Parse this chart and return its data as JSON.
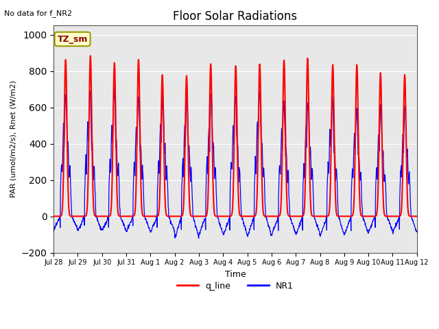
{
  "title": "Floor Solar Radiations",
  "xlabel": "Time",
  "ylabel": "PAR (umol/m2/s), Rnet (W/m2)",
  "ylim": [
    -200,
    1050
  ],
  "yticks": [
    -200,
    0,
    200,
    400,
    600,
    800,
    1000
  ],
  "no_data_text": "No data for f_NR2",
  "legend_label1": "q_line",
  "legend_label2": "NR1",
  "tz_label": "TZ_sm",
  "bg_color": "#e8e8e8",
  "num_days": 15,
  "xtick_labels": [
    "Jul 28",
    "Jul 29",
    "Jul 30",
    "Jul 31",
    "Aug 1",
    "Aug 2",
    "Aug 3",
    "Aug 4",
    "Aug 5",
    "Aug 6",
    "Aug 7",
    "Aug 8",
    "Aug 9",
    "Aug 10",
    "Aug 11",
    "Aug 12"
  ],
  "q_peaks": [
    865,
    885,
    845,
    865,
    780,
    775,
    840,
    830,
    840,
    860,
    870,
    835,
    835,
    790,
    780
  ],
  "nr1_peaks": [
    670,
    685,
    690,
    665,
    660,
    655,
    670,
    660,
    695,
    630,
    635,
    660,
    590,
    605,
    600
  ],
  "nr1_neg": [
    -75,
    -80,
    -80,
    -85,
    -85,
    -120,
    -100,
    -105,
    -110,
    -100,
    -100,
    -110,
    -100,
    -85,
    -90
  ]
}
